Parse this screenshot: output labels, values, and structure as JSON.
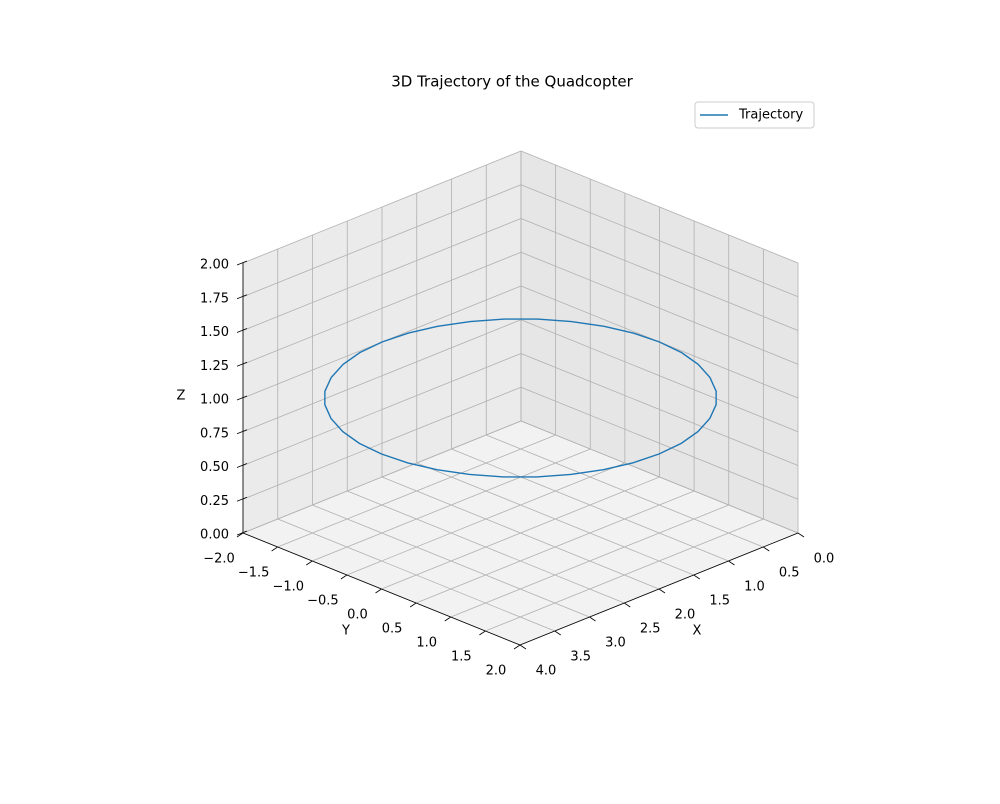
{
  "chart_data": {
    "type": "line3d",
    "title": "3D Trajectory of the Quadcopter",
    "xlabel": "X",
    "ylabel": "Y",
    "zlabel": "Z",
    "xlim": [
      0,
      4
    ],
    "ylim": [
      -2,
      2
    ],
    "zlim": [
      0,
      2
    ],
    "xticks": [
      {
        "value": 0,
        "label": "0.0"
      },
      {
        "value": 0.5,
        "label": "0.5"
      },
      {
        "value": 1,
        "label": "1.0"
      },
      {
        "value": 1.5,
        "label": "1.5"
      },
      {
        "value": 2,
        "label": "2.0"
      },
      {
        "value": 2.5,
        "label": "2.5"
      },
      {
        "value": 3,
        "label": "3.0"
      },
      {
        "value": 3.5,
        "label": "3.5"
      },
      {
        "value": 4,
        "label": "4.0"
      }
    ],
    "yticks": [
      {
        "value": -2,
        "label": "−2.0"
      },
      {
        "value": -1.5,
        "label": "−1.5"
      },
      {
        "value": -1,
        "label": "−1.0"
      },
      {
        "value": -0.5,
        "label": "−0.5"
      },
      {
        "value": 0,
        "label": "0.0"
      },
      {
        "value": 0.5,
        "label": "0.5"
      },
      {
        "value": 1,
        "label": "1.0"
      },
      {
        "value": 1.5,
        "label": "1.5"
      },
      {
        "value": 2,
        "label": "2.0"
      }
    ],
    "zticks": [
      {
        "value": 0,
        "label": "0.00"
      },
      {
        "value": 0.25,
        "label": "0.25"
      },
      {
        "value": 0.5,
        "label": "0.50"
      },
      {
        "value": 0.75,
        "label": "0.75"
      },
      {
        "value": 1,
        "label": "1.00"
      },
      {
        "value": 1.25,
        "label": "1.25"
      },
      {
        "value": 1.5,
        "label": "1.50"
      },
      {
        "value": 1.75,
        "label": "1.75"
      },
      {
        "value": 2,
        "label": "2.00"
      }
    ],
    "grid": true,
    "legend": "upper right",
    "series": [
      {
        "name": "Trajectory",
        "color": "#1f77b4",
        "x": [
          4,
          3.97,
          3.88,
          3.73,
          3.53,
          3.29,
          3,
          2.68,
          2.35,
          2,
          1.65,
          1.32,
          1,
          0.71,
          0.47,
          0.27,
          0.12,
          0.03,
          0,
          0.03,
          0.12,
          0.27,
          0.47,
          0.71,
          1,
          1.32,
          1.65,
          2,
          2.35,
          2.68,
          3,
          3.29,
          3.53,
          3.73,
          3.88,
          3.97,
          4
        ],
        "y": [
          0,
          0.35,
          0.68,
          1,
          1.29,
          1.53,
          1.73,
          1.88,
          1.97,
          2,
          1.97,
          1.88,
          1.73,
          1.53,
          1.29,
          1,
          0.68,
          0.35,
          0,
          -0.35,
          -0.68,
          -1,
          -1.29,
          -1.53,
          -1.73,
          -1.88,
          -1.97,
          -2,
          -1.97,
          -1.88,
          -1.73,
          -1.53,
          -1.29,
          -1,
          -0.68,
          -0.35,
          0
        ],
        "z": [
          1,
          1,
          1,
          1,
          1,
          1,
          1,
          1,
          1,
          1,
          1,
          1,
          1,
          1,
          1,
          1,
          1,
          1,
          1,
          1,
          1,
          1,
          1,
          1,
          1,
          1,
          1,
          1,
          1,
          1,
          1,
          1,
          1,
          1,
          1,
          1,
          1
        ]
      }
    ]
  }
}
